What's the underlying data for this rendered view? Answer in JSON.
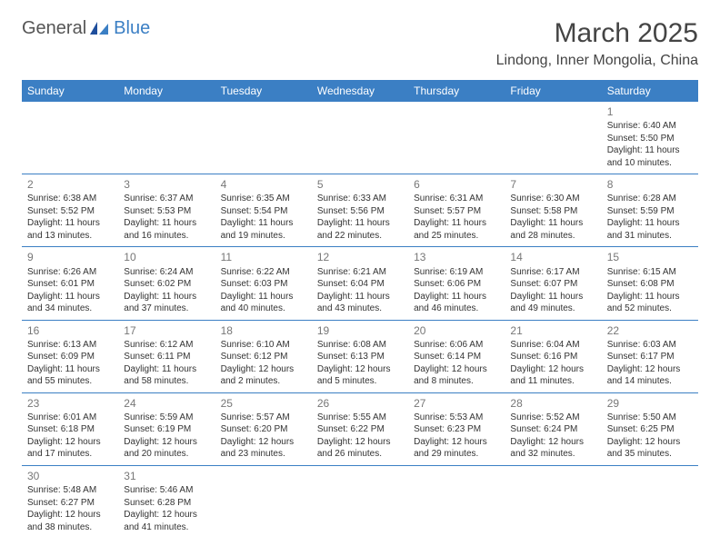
{
  "brand": {
    "part1": "General",
    "part2": "Blue"
  },
  "title": "March 2025",
  "location": "Lindong, Inner Mongolia, China",
  "colors": {
    "headerBg": "#3b7fc4",
    "headerText": "#ffffff",
    "border": "#3b7fc4",
    "dayNum": "#777777",
    "bodyText": "#333333"
  },
  "weekdays": [
    "Sunday",
    "Monday",
    "Tuesday",
    "Wednesday",
    "Thursday",
    "Friday",
    "Saturday"
  ],
  "weeks": [
    [
      null,
      null,
      null,
      null,
      null,
      null,
      {
        "day": "1",
        "sunrise": "Sunrise: 6:40 AM",
        "sunset": "Sunset: 5:50 PM",
        "daylight1": "Daylight: 11 hours",
        "daylight2": "and 10 minutes."
      }
    ],
    [
      {
        "day": "2",
        "sunrise": "Sunrise: 6:38 AM",
        "sunset": "Sunset: 5:52 PM",
        "daylight1": "Daylight: 11 hours",
        "daylight2": "and 13 minutes."
      },
      {
        "day": "3",
        "sunrise": "Sunrise: 6:37 AM",
        "sunset": "Sunset: 5:53 PM",
        "daylight1": "Daylight: 11 hours",
        "daylight2": "and 16 minutes."
      },
      {
        "day": "4",
        "sunrise": "Sunrise: 6:35 AM",
        "sunset": "Sunset: 5:54 PM",
        "daylight1": "Daylight: 11 hours",
        "daylight2": "and 19 minutes."
      },
      {
        "day": "5",
        "sunrise": "Sunrise: 6:33 AM",
        "sunset": "Sunset: 5:56 PM",
        "daylight1": "Daylight: 11 hours",
        "daylight2": "and 22 minutes."
      },
      {
        "day": "6",
        "sunrise": "Sunrise: 6:31 AM",
        "sunset": "Sunset: 5:57 PM",
        "daylight1": "Daylight: 11 hours",
        "daylight2": "and 25 minutes."
      },
      {
        "day": "7",
        "sunrise": "Sunrise: 6:30 AM",
        "sunset": "Sunset: 5:58 PM",
        "daylight1": "Daylight: 11 hours",
        "daylight2": "and 28 minutes."
      },
      {
        "day": "8",
        "sunrise": "Sunrise: 6:28 AM",
        "sunset": "Sunset: 5:59 PM",
        "daylight1": "Daylight: 11 hours",
        "daylight2": "and 31 minutes."
      }
    ],
    [
      {
        "day": "9",
        "sunrise": "Sunrise: 6:26 AM",
        "sunset": "Sunset: 6:01 PM",
        "daylight1": "Daylight: 11 hours",
        "daylight2": "and 34 minutes."
      },
      {
        "day": "10",
        "sunrise": "Sunrise: 6:24 AM",
        "sunset": "Sunset: 6:02 PM",
        "daylight1": "Daylight: 11 hours",
        "daylight2": "and 37 minutes."
      },
      {
        "day": "11",
        "sunrise": "Sunrise: 6:22 AM",
        "sunset": "Sunset: 6:03 PM",
        "daylight1": "Daylight: 11 hours",
        "daylight2": "and 40 minutes."
      },
      {
        "day": "12",
        "sunrise": "Sunrise: 6:21 AM",
        "sunset": "Sunset: 6:04 PM",
        "daylight1": "Daylight: 11 hours",
        "daylight2": "and 43 minutes."
      },
      {
        "day": "13",
        "sunrise": "Sunrise: 6:19 AM",
        "sunset": "Sunset: 6:06 PM",
        "daylight1": "Daylight: 11 hours",
        "daylight2": "and 46 minutes."
      },
      {
        "day": "14",
        "sunrise": "Sunrise: 6:17 AM",
        "sunset": "Sunset: 6:07 PM",
        "daylight1": "Daylight: 11 hours",
        "daylight2": "and 49 minutes."
      },
      {
        "day": "15",
        "sunrise": "Sunrise: 6:15 AM",
        "sunset": "Sunset: 6:08 PM",
        "daylight1": "Daylight: 11 hours",
        "daylight2": "and 52 minutes."
      }
    ],
    [
      {
        "day": "16",
        "sunrise": "Sunrise: 6:13 AM",
        "sunset": "Sunset: 6:09 PM",
        "daylight1": "Daylight: 11 hours",
        "daylight2": "and 55 minutes."
      },
      {
        "day": "17",
        "sunrise": "Sunrise: 6:12 AM",
        "sunset": "Sunset: 6:11 PM",
        "daylight1": "Daylight: 11 hours",
        "daylight2": "and 58 minutes."
      },
      {
        "day": "18",
        "sunrise": "Sunrise: 6:10 AM",
        "sunset": "Sunset: 6:12 PM",
        "daylight1": "Daylight: 12 hours",
        "daylight2": "and 2 minutes."
      },
      {
        "day": "19",
        "sunrise": "Sunrise: 6:08 AM",
        "sunset": "Sunset: 6:13 PM",
        "daylight1": "Daylight: 12 hours",
        "daylight2": "and 5 minutes."
      },
      {
        "day": "20",
        "sunrise": "Sunrise: 6:06 AM",
        "sunset": "Sunset: 6:14 PM",
        "daylight1": "Daylight: 12 hours",
        "daylight2": "and 8 minutes."
      },
      {
        "day": "21",
        "sunrise": "Sunrise: 6:04 AM",
        "sunset": "Sunset: 6:16 PM",
        "daylight1": "Daylight: 12 hours",
        "daylight2": "and 11 minutes."
      },
      {
        "day": "22",
        "sunrise": "Sunrise: 6:03 AM",
        "sunset": "Sunset: 6:17 PM",
        "daylight1": "Daylight: 12 hours",
        "daylight2": "and 14 minutes."
      }
    ],
    [
      {
        "day": "23",
        "sunrise": "Sunrise: 6:01 AM",
        "sunset": "Sunset: 6:18 PM",
        "daylight1": "Daylight: 12 hours",
        "daylight2": "and 17 minutes."
      },
      {
        "day": "24",
        "sunrise": "Sunrise: 5:59 AM",
        "sunset": "Sunset: 6:19 PM",
        "daylight1": "Daylight: 12 hours",
        "daylight2": "and 20 minutes."
      },
      {
        "day": "25",
        "sunrise": "Sunrise: 5:57 AM",
        "sunset": "Sunset: 6:20 PM",
        "daylight1": "Daylight: 12 hours",
        "daylight2": "and 23 minutes."
      },
      {
        "day": "26",
        "sunrise": "Sunrise: 5:55 AM",
        "sunset": "Sunset: 6:22 PM",
        "daylight1": "Daylight: 12 hours",
        "daylight2": "and 26 minutes."
      },
      {
        "day": "27",
        "sunrise": "Sunrise: 5:53 AM",
        "sunset": "Sunset: 6:23 PM",
        "daylight1": "Daylight: 12 hours",
        "daylight2": "and 29 minutes."
      },
      {
        "day": "28",
        "sunrise": "Sunrise: 5:52 AM",
        "sunset": "Sunset: 6:24 PM",
        "daylight1": "Daylight: 12 hours",
        "daylight2": "and 32 minutes."
      },
      {
        "day": "29",
        "sunrise": "Sunrise: 5:50 AM",
        "sunset": "Sunset: 6:25 PM",
        "daylight1": "Daylight: 12 hours",
        "daylight2": "and 35 minutes."
      }
    ],
    [
      {
        "day": "30",
        "sunrise": "Sunrise: 5:48 AM",
        "sunset": "Sunset: 6:27 PM",
        "daylight1": "Daylight: 12 hours",
        "daylight2": "and 38 minutes."
      },
      {
        "day": "31",
        "sunrise": "Sunrise: 5:46 AM",
        "sunset": "Sunset: 6:28 PM",
        "daylight1": "Daylight: 12 hours",
        "daylight2": "and 41 minutes."
      },
      null,
      null,
      null,
      null,
      null
    ]
  ]
}
